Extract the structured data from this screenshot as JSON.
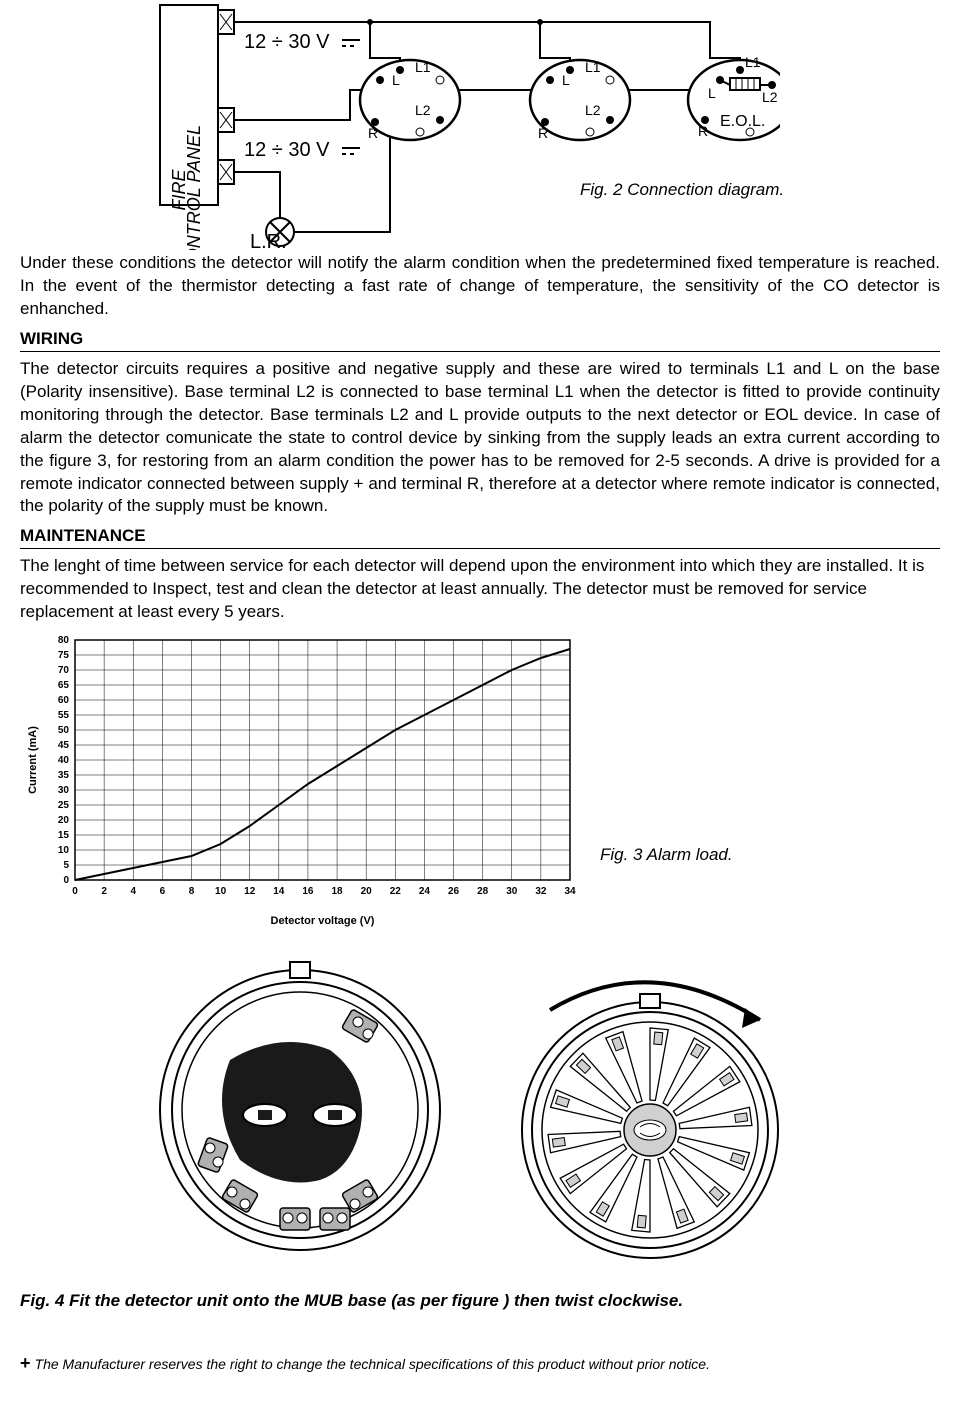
{
  "diagram": {
    "panel_label_1": "FIRE",
    "panel_label_2": "CONTROL PANEL",
    "voltage_label": "12 ÷ 30 V",
    "lr_label": "L.R.",
    "terminals": {
      "L": "L",
      "L1": "L1",
      "L2": "L2",
      "R": "R"
    },
    "eol": "E.O.L.",
    "caption": "Fig. 2 Connection diagram."
  },
  "intro_para1": "Under these conditions the detector will notify the alarm condition when the predetermined fixed temperature is reached. In the event of the thermistor detecting a fast rate of change of temperature, the sensitivity of the CO detector is enhanched.",
  "wiring": {
    "title": "WIRING",
    "text": "The detector circuits requires a positive and negative supply and these are wired to terminals L1 and L on the base (Polarity insensitive). Base terminal L2 is connected to base terminal L1 when the detector is fitted to provide continuity monitoring through the detector. Base terminals L2 and L provide outputs to the next detector or EOL device. In case of alarm the detector comunicate the state to control device by sinking from the supply leads an extra current according to the figure 3, for restoring from an alarm condition the power has to be removed for 2-5 seconds. A drive is provided for a remote indicator connected between supply + and terminal R, therefore at a detector where remote indicator is connected, the polarity of the supply must be known."
  },
  "maintenance": {
    "title": "MAINTENANCE",
    "text": "The lenght of time between service for each detector will depend upon the environment into which they are installed. It is recommended to Inspect, test and clean the detector at least annually. The detector must be removed for service replacement at least  every 5 years."
  },
  "chart": {
    "type": "line",
    "x_label": "Detector voltage (V)",
    "y_label": "Current (mA)",
    "x_min": 0,
    "x_max": 34,
    "x_step": 2,
    "y_min": 0,
    "y_max": 80,
    "y_step": 5,
    "x_ticks": [
      0,
      2,
      4,
      6,
      8,
      10,
      12,
      14,
      16,
      18,
      20,
      22,
      24,
      26,
      28,
      30,
      32,
      34
    ],
    "y_ticks": [
      0,
      5,
      10,
      15,
      20,
      25,
      30,
      35,
      40,
      45,
      50,
      55,
      60,
      65,
      70,
      75,
      80
    ],
    "data": [
      [
        0,
        0
      ],
      [
        5,
        5
      ],
      [
        8,
        8
      ],
      [
        10,
        12
      ],
      [
        12,
        18
      ],
      [
        14,
        25
      ],
      [
        16,
        32
      ],
      [
        18,
        38
      ],
      [
        20,
        44
      ],
      [
        22,
        50
      ],
      [
        24,
        55
      ],
      [
        26,
        60
      ],
      [
        28,
        65
      ],
      [
        30,
        70
      ],
      [
        32,
        74
      ],
      [
        34,
        77
      ]
    ],
    "line_color": "#000000",
    "line_width": 2,
    "grid_color": "#000000",
    "grid_width": 0.5,
    "background": "#ffffff",
    "font_size_ticks": 10,
    "font_size_label": 11,
    "caption": "Fig. 3 Alarm load."
  },
  "fig4": {
    "caption": "Fig. 4 Fit the detector unit onto the MUB base (as per figure ) then twist clockwise."
  },
  "footnote": "The  Manufacturer reserves the right to change the technical specifications of this product without prior notice."
}
